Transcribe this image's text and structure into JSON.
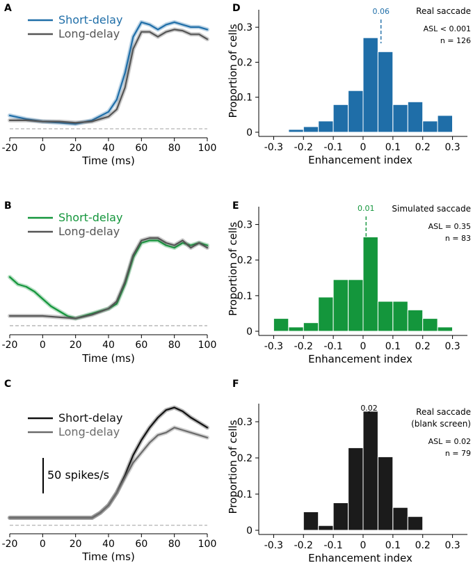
{
  "chart_data": [
    {
      "id": "A",
      "type": "line",
      "panel_label": "A",
      "xlabel": "Time (ms)",
      "ylabel": "",
      "xlim": [
        -20,
        100
      ],
      "xticks": [
        -20,
        0,
        20,
        40,
        60,
        80,
        100
      ],
      "ylim": [
        0,
        100
      ],
      "baseline": 4,
      "series": [
        {
          "name": "Short-delay",
          "color": "#1f6ea8",
          "x": [
            -20,
            -10,
            0,
            10,
            20,
            30,
            40,
            45,
            50,
            55,
            60,
            65,
            70,
            75,
            80,
            85,
            90,
            95,
            100
          ],
          "y": [
            15,
            12,
            10,
            9,
            8,
            11,
            18,
            28,
            50,
            80,
            92,
            90,
            86,
            90,
            92,
            90,
            88,
            88,
            86
          ]
        },
        {
          "name": "Long-delay",
          "color": "#555555",
          "x": [
            -20,
            -10,
            0,
            10,
            20,
            30,
            40,
            45,
            50,
            55,
            60,
            65,
            70,
            75,
            80,
            85,
            90,
            95,
            100
          ],
          "y": [
            11,
            11,
            10,
            10,
            9,
            10,
            14,
            20,
            38,
            70,
            84,
            84,
            80,
            84,
            86,
            85,
            82,
            82,
            78
          ]
        }
      ]
    },
    {
      "id": "B",
      "type": "line",
      "panel_label": "B",
      "xlabel": "Time (ms)",
      "ylabel": "",
      "xlim": [
        -20,
        100
      ],
      "xticks": [
        -20,
        0,
        20,
        40,
        60,
        80,
        100
      ],
      "ylim": [
        0,
        100
      ],
      "baseline": 4,
      "series": [
        {
          "name": "Short-delay",
          "color": "#14963c",
          "x": [
            -20,
            -15,
            -10,
            -5,
            0,
            5,
            10,
            15,
            20,
            25,
            30,
            35,
            40,
            45,
            50,
            55,
            60,
            65,
            70,
            75,
            80,
            85,
            90,
            95,
            100
          ],
          "y": [
            44,
            38,
            36,
            32,
            26,
            20,
            16,
            12,
            10,
            12,
            14,
            16,
            18,
            22,
            38,
            60,
            72,
            74,
            74,
            70,
            68,
            72,
            70,
            72,
            70
          ]
        },
        {
          "name": "Long-delay",
          "color": "#555555",
          "x": [
            -20,
            -10,
            0,
            10,
            20,
            30,
            40,
            45,
            50,
            55,
            60,
            65,
            70,
            75,
            80,
            85,
            90,
            95,
            100
          ],
          "y": [
            12,
            12,
            12,
            11,
            10,
            13,
            18,
            24,
            40,
            62,
            74,
            76,
            76,
            72,
            70,
            74,
            68,
            72,
            68
          ]
        }
      ]
    },
    {
      "id": "C",
      "type": "line",
      "panel_label": "C",
      "xlabel": "Time (ms)",
      "ylabel": "",
      "xlim": [
        -20,
        100
      ],
      "xticks": [
        -20,
        0,
        20,
        40,
        60,
        80,
        100
      ],
      "ylim": [
        0,
        100
      ],
      "baseline": 4,
      "scale_bar_label": "50 spikes/s",
      "series": [
        {
          "name": "Short-delay",
          "color": "#111111",
          "x": [
            -20,
            -10,
            0,
            10,
            20,
            30,
            35,
            40,
            45,
            50,
            55,
            60,
            65,
            70,
            75,
            80,
            85,
            90,
            95,
            100
          ],
          "y": [
            10,
            10,
            10,
            10,
            10,
            10,
            14,
            20,
            30,
            44,
            60,
            72,
            82,
            90,
            96,
            98,
            95,
            90,
            86,
            82
          ]
        },
        {
          "name": "Long-delay",
          "color": "#6b6b6b",
          "x": [
            -20,
            -10,
            0,
            10,
            20,
            30,
            35,
            40,
            45,
            50,
            55,
            60,
            65,
            70,
            75,
            80,
            85,
            90,
            95,
            100
          ],
          "y": [
            10,
            10,
            10,
            10,
            10,
            10,
            14,
            20,
            30,
            42,
            54,
            62,
            70,
            76,
            78,
            82,
            80,
            78,
            76,
            74
          ]
        }
      ]
    },
    {
      "id": "D",
      "type": "bar",
      "panel_label": "D",
      "xlabel": "Enhancement index",
      "ylabel": "Proportion of cells",
      "xlim": [
        -0.35,
        0.35
      ],
      "ylim": [
        0,
        0.35
      ],
      "xticks": [
        "-0.3",
        "-0.2",
        "-0.1",
        "0",
        "0.1",
        "0.2",
        "0.3"
      ],
      "yticks": [
        "0",
        "0.1",
        "0.2",
        "0.3"
      ],
      "bin_width": 0.05,
      "color": "#1f6ea8",
      "bin_lefts": [
        -0.25,
        -0.2,
        -0.15,
        -0.1,
        -0.05,
        0,
        0.05,
        0.1,
        0.15,
        0.2,
        0.25
      ],
      "values": [
        0.008,
        0.016,
        0.032,
        0.079,
        0.119,
        0.27,
        0.23,
        0.079,
        0.087,
        0.032,
        0.048
      ],
      "mean_value": 0.06,
      "mean_label": "0.06",
      "mean_color": "#1f6ea8",
      "annotation_lines": [
        "Real saccade",
        "ASL < 0.001",
        "n = 126"
      ]
    },
    {
      "id": "E",
      "type": "bar",
      "panel_label": "E",
      "xlabel": "Enhancement index",
      "ylabel": "Proportion of cells",
      "xlim": [
        -0.35,
        0.35
      ],
      "ylim": [
        0,
        0.35
      ],
      "xticks": [
        "-0.3",
        "-0.2",
        "-0.1",
        "0",
        "0.1",
        "0.2",
        "0.3"
      ],
      "yticks": [
        "0",
        "0.1",
        "0.2",
        "0.3"
      ],
      "bin_width": 0.05,
      "color": "#14963c",
      "bin_lefts": [
        -0.3,
        -0.25,
        -0.2,
        -0.15,
        -0.1,
        -0.05,
        0,
        0.05,
        0.1,
        0.15,
        0.2,
        0.25
      ],
      "values": [
        0.036,
        0.012,
        0.024,
        0.096,
        0.145,
        0.145,
        0.265,
        0.084,
        0.084,
        0.06,
        0.036,
        0.012
      ],
      "mean_value": 0.01,
      "mean_label": "0.01",
      "mean_color": "#14963c",
      "annotation_lines": [
        "Simulated saccade",
        "ASL = 0.35",
        "n = 83"
      ]
    },
    {
      "id": "F",
      "type": "bar",
      "panel_label": "F",
      "xlabel": "Enhancement index",
      "ylabel": "Proportion of cells",
      "xlim": [
        -0.35,
        0.35
      ],
      "ylim": [
        0,
        0.35
      ],
      "xticks": [
        "-0.3",
        "-0.2",
        "-0.1",
        "0",
        "0.1",
        "0.2",
        "0.3"
      ],
      "yticks": [
        "0",
        "0.1",
        "0.2",
        "0.3"
      ],
      "bin_width": 0.05,
      "color": "#1b1b1b",
      "bin_lefts": [
        -0.2,
        -0.15,
        -0.1,
        -0.05,
        0,
        0.05,
        0.1,
        0.15
      ],
      "values": [
        0.051,
        0.013,
        0.076,
        0.228,
        0.329,
        0.203,
        0.063,
        0.038
      ],
      "mean_value": 0.02,
      "mean_label": "0.02",
      "mean_color": "#000000",
      "annotation_lines": [
        "Real saccade",
        "(blank screen)",
        "ASL = 0.02",
        "n = 79"
      ]
    }
  ]
}
